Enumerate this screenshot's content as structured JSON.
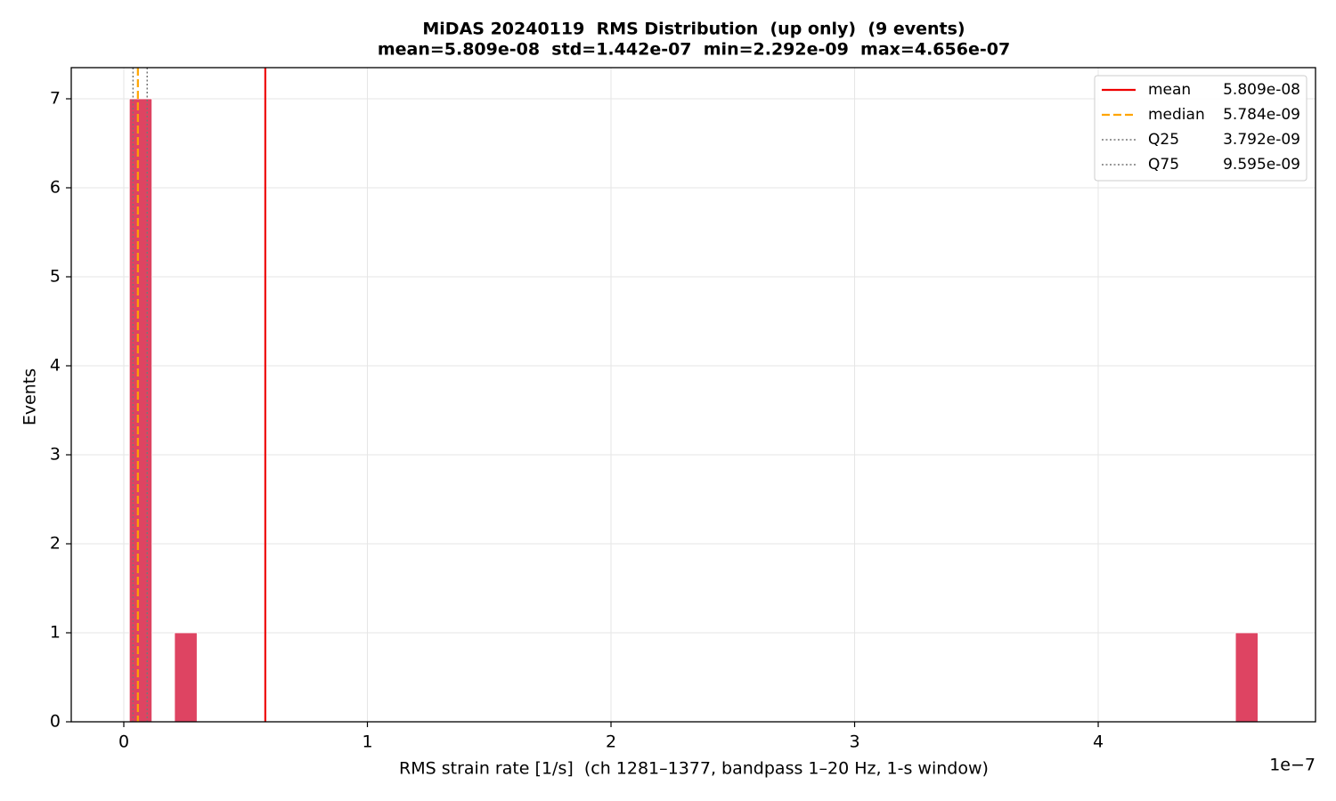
{
  "chart_data": {
    "type": "histogram",
    "title": "MiDAS 20240119  RMS Distribution  (up only)  (9 events)",
    "subtitle": "mean=5.809e-08  std=1.442e-07  min=2.292e-09  max=4.656e-07",
    "x_label": "RMS strain rate [1/s]  (ch 1281–1377, bandpass 1–20 Hz, 1-s window)",
    "y_label": "Events",
    "x_offset_label": "1e−7",
    "color": "#dc3a5a",
    "grid": true,
    "legend": "upper right",
    "bins": [
      2.292e-09,
      1.1558e-08,
      2.0824e-08,
      3.0091e-08,
      3.9357e-08,
      4.8623e-08,
      5.7889e-08,
      6.7155e-08,
      7.6422e-08,
      8.5688e-08,
      9.4954e-08,
      1.0422e-07,
      1.1349e-07,
      1.2275e-07,
      1.3202e-07,
      1.4129e-07,
      1.5055e-07,
      1.5982e-07,
      1.6908e-07,
      1.7835e-07,
      1.8762e-07,
      1.9688e-07,
      2.0615e-07,
      2.1541e-07,
      2.2468e-07,
      2.3395e-07,
      2.4321e-07,
      2.5248e-07,
      2.6175e-07,
      2.7101e-07,
      2.8028e-07,
      2.8955e-07,
      2.9881e-07,
      3.0808e-07,
      3.1734e-07,
      3.2661e-07,
      3.3588e-07,
      3.4514e-07,
      3.5441e-07,
      3.6368e-07,
      3.7294e-07,
      3.8221e-07,
      3.9147e-07,
      4.0074e-07,
      4.1001e-07,
      4.1927e-07,
      4.2854e-07,
      4.3781e-07,
      4.4707e-07,
      4.5634e-07,
      4.656e-07
    ],
    "values": [
      7,
      0,
      1,
      0,
      0,
      0,
      0,
      0,
      0,
      0,
      0,
      0,
      0,
      0,
      0,
      0,
      0,
      0,
      0,
      0,
      0,
      0,
      0,
      0,
      0,
      0,
      0,
      0,
      0,
      0,
      0,
      0,
      0,
      0,
      0,
      0,
      0,
      0,
      0,
      0,
      0,
      0,
      0,
      0,
      0,
      0,
      0,
      0,
      0,
      1
    ],
    "reference_lines": [
      {
        "name": "mean",
        "value": 5.809e-08,
        "value_label": "5.809e-08",
        "color": "#ee0000",
        "style": "solid"
      },
      {
        "name": "median",
        "value": 5.784e-09,
        "value_label": "5.784e-09",
        "color": "#ffa500",
        "style": "dashed"
      },
      {
        "name": "Q25",
        "value": 3.792e-09,
        "value_label": "3.792e-09",
        "color": "#777777",
        "style": "dotted"
      },
      {
        "name": "Q75",
        "value": 9.595e-09,
        "value_label": "9.595e-09",
        "color": "#777777",
        "style": "dotted"
      }
    ],
    "xlim": [
      -2.157e-08,
      4.892e-07
    ],
    "xticks": [
      0,
      {
        "value": 1e-07,
        "label": "1"
      },
      {
        "value": 2e-07,
        "label": "2"
      },
      {
        "value": 3e-07,
        "label": "3"
      },
      {
        "value": 4e-07,
        "label": "4"
      }
    ],
    "ylim": [
      0,
      7.35
    ],
    "yticks": [
      0,
      1,
      2,
      3,
      4,
      5,
      6,
      7
    ]
  }
}
